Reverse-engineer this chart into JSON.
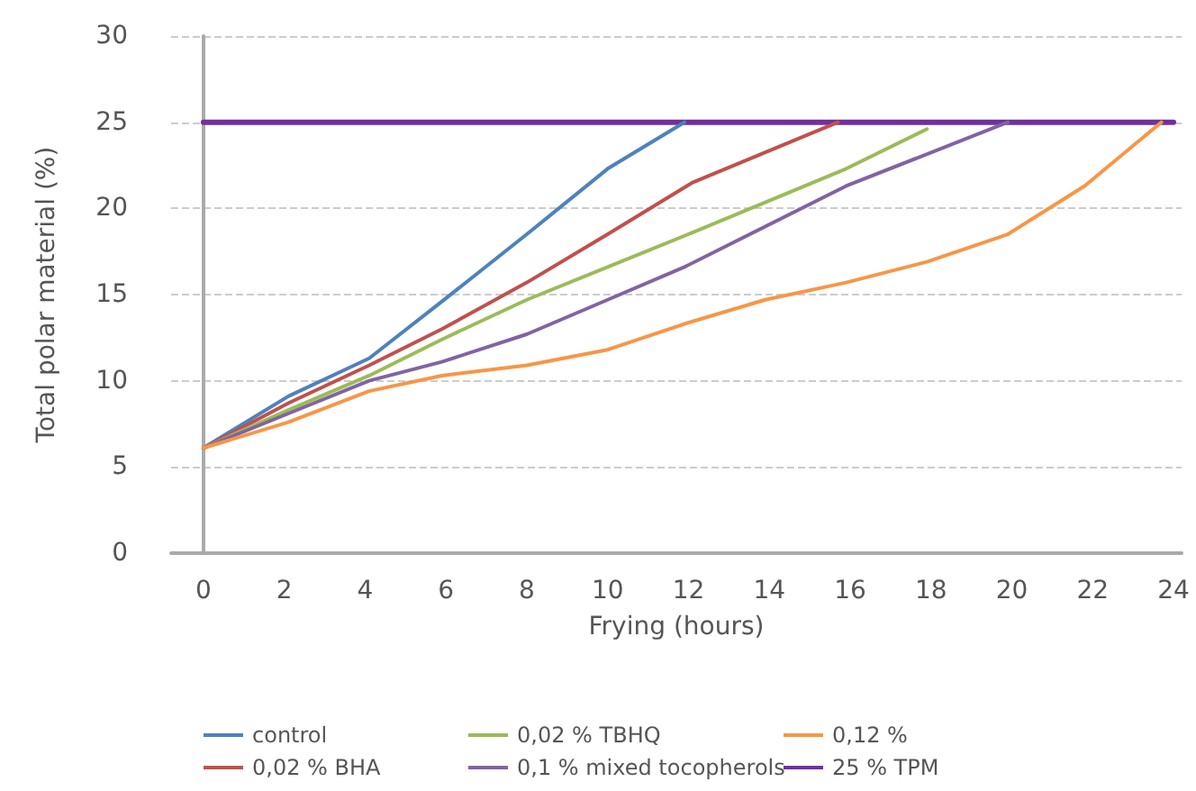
{
  "chart_data": {
    "type": "line",
    "xlabel": "Frying (hours)",
    "ylabel": "Total polar material (%)",
    "xlim": [
      -0.8,
      24.2
    ],
    "xticks": [
      0,
      2,
      4,
      6,
      8,
      10,
      12,
      14,
      16,
      18,
      20,
      22,
      24
    ],
    "ylim": [
      0,
      30
    ],
    "yticks": [
      0,
      5,
      10,
      15,
      20,
      25,
      30
    ],
    "grid": "y",
    "legend": "bottom",
    "marker": "none",
    "line_style": "solid",
    "series": [
      {
        "name": "control",
        "color": "#4f81bd",
        "x": [
          0,
          2.1,
          4.1,
          5.9,
          8.0,
          10.0,
          11.9
        ],
        "values": [
          6.1,
          9.1,
          11.3,
          14.6,
          18.5,
          22.3,
          25
        ]
      },
      {
        "name": "0,02 % BHA",
        "color": "#c0504d",
        "x": [
          0,
          2.1,
          4.1,
          5.9,
          8.0,
          10.0,
          12.1,
          15.7
        ],
        "values": [
          6.1,
          8.7,
          10.9,
          13.0,
          15.7,
          18.5,
          21.5,
          25
        ]
      },
      {
        "name": "0,02 % TBHQ",
        "color": "#9bbb59",
        "x": [
          0,
          2.1,
          4.1,
          5.9,
          8.0,
          10.0,
          12.1,
          15.9,
          17.9
        ],
        "values": [
          6.1,
          8.3,
          10.3,
          12.4,
          14.7,
          16.6,
          18.6,
          22.3,
          24.6
        ]
      },
      {
        "name": "0,1 % mixed tocopherols",
        "color": "#8064a2",
        "x": [
          0,
          2.1,
          4.1,
          5.9,
          8.0,
          10.0,
          11.9,
          15.9,
          19.9
        ],
        "values": [
          6.1,
          8.1,
          10.0,
          11.1,
          12.7,
          14.7,
          16.6,
          21.3,
          25
        ]
      },
      {
        "name": "0,12 %",
        "color": "#f79646",
        "x": [
          0,
          2.1,
          4.1,
          5.9,
          8.0,
          10.0,
          11.9,
          13.9,
          15.9,
          17.9,
          19.9,
          21.8,
          23.7
        ],
        "values": [
          6.1,
          7.6,
          9.4,
          10.3,
          10.9,
          11.8,
          13.3,
          14.7,
          15.7,
          16.9,
          18.5,
          21.3,
          25
        ]
      },
      {
        "name": "25 % TPM",
        "color": "#7030a0",
        "x": [
          0,
          24
        ],
        "values": [
          25,
          25
        ]
      }
    ]
  }
}
